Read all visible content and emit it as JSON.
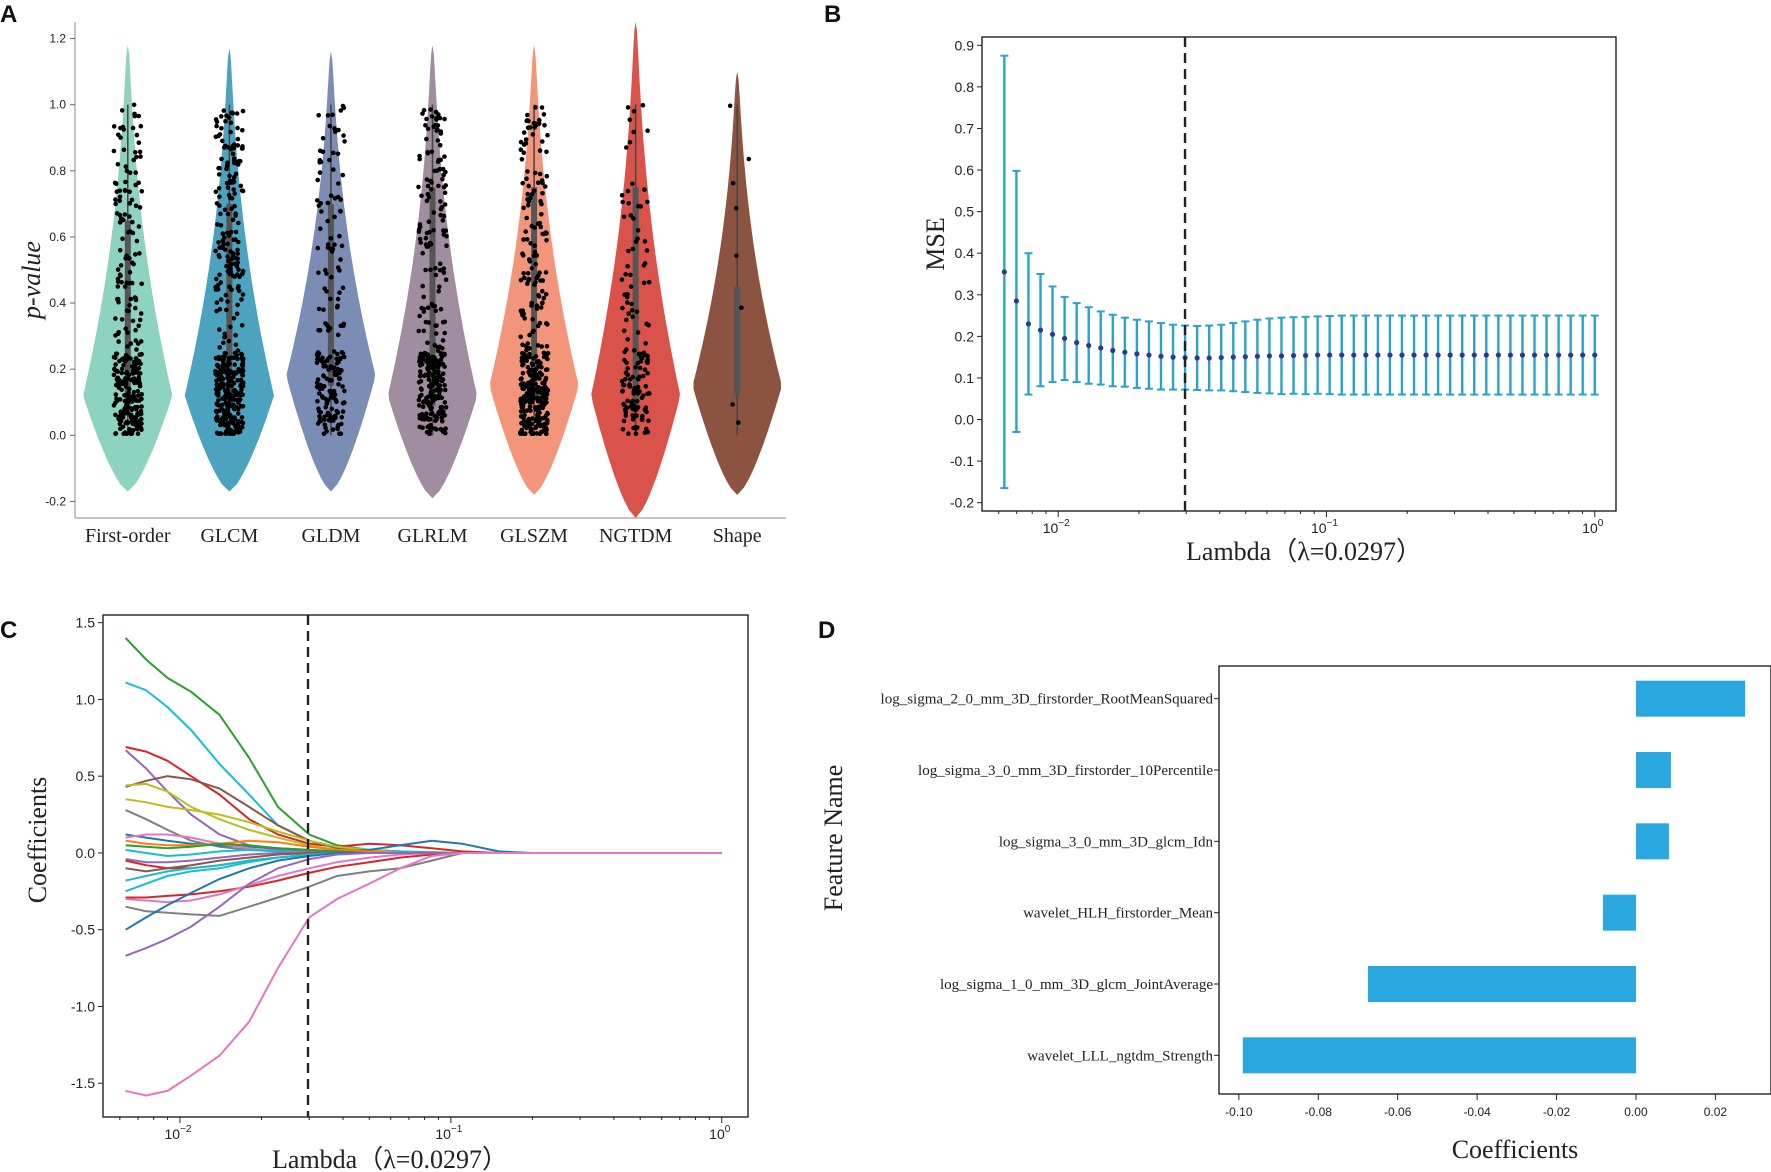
{
  "panels": {
    "a": "A",
    "b": "B",
    "c": "C",
    "d": "D"
  },
  "chart_data": [
    {
      "id": "A",
      "type": "violin",
      "ylabel": "p-value",
      "ylim": [
        -0.25,
        1.25
      ],
      "yticks": [
        "-0.2",
        "0.0",
        "0.2",
        "0.4",
        "0.6",
        "0.8",
        "1.0",
        "1.2"
      ],
      "yticks_values": [
        -0.2,
        0.0,
        0.2,
        0.4,
        0.6,
        0.8,
        1.0,
        1.2
      ],
      "categories": [
        "First-order",
        "GLCM",
        "GLDM",
        "GLRLM",
        "GLSZM",
        "NGTDM",
        "Shape"
      ],
      "colors": [
        "#8dd3c0",
        "#4ba3bf",
        "#7b8db5",
        "#a08da0",
        "#f3957a",
        "#d9534a",
        "#8c5440"
      ],
      "violin_range": [
        [
          -0.17,
          1.18
        ],
        [
          -0.17,
          1.17
        ],
        [
          -0.17,
          1.16
        ],
        [
          -0.19,
          1.18
        ],
        [
          -0.18,
          1.18
        ],
        [
          -0.25,
          1.25
        ],
        [
          -0.18,
          1.1
        ]
      ],
      "violin_mode": [
        0.12,
        0.12,
        0.18,
        0.12,
        0.15,
        0.12,
        0.15
      ],
      "n_points": [
        300,
        400,
        200,
        300,
        350,
        150,
        8
      ],
      "median": [
        0.35,
        0.4,
        0.4,
        0.45,
        0.45,
        0.45,
        0.15
      ]
    },
    {
      "id": "B",
      "type": "errorbar",
      "xlabel": "Lambda（λ=0.0297）",
      "ylabel": "MSE",
      "xscale": "log",
      "xlim": [
        0.0052,
        1.2
      ],
      "ylim": [
        -0.22,
        0.92
      ],
      "yticks": [
        "-0.2",
        "-0.1",
        "0.0",
        "0.1",
        "0.2",
        "0.3",
        "0.4",
        "0.5",
        "0.6",
        "0.7",
        "0.8",
        "0.9"
      ],
      "yticks_values": [
        -0.2,
        -0.1,
        0,
        0.1,
        0.2,
        0.3,
        0.4,
        0.5,
        0.6,
        0.7,
        0.8,
        0.9
      ],
      "xticks_values": [
        0.01,
        0.1,
        1
      ],
      "xticks_exp": [
        "−2",
        "−1",
        "0"
      ],
      "lambda_opt": 0.0297,
      "lambda_min": 0.0063,
      "lambda_max": 1.0,
      "n_lambdas": 50,
      "mean": [
        0.355,
        0.285,
        0.23,
        0.215,
        0.205,
        0.195,
        0.185,
        0.178,
        0.172,
        0.166,
        0.162,
        0.158,
        0.155,
        0.152,
        0.15,
        0.149,
        0.148,
        0.148,
        0.149,
        0.15,
        0.151,
        0.152,
        0.153,
        0.153,
        0.154,
        0.154,
        0.155,
        0.155,
        0.155,
        0.155,
        0.155,
        0.155,
        0.155,
        0.155,
        0.155,
        0.155,
        0.155,
        0.155,
        0.155,
        0.155,
        0.155,
        0.155,
        0.155,
        0.155,
        0.155,
        0.155,
        0.155,
        0.155,
        0.155,
        0.155
      ],
      "upper": [
        0.875,
        0.598,
        0.4,
        0.35,
        0.32,
        0.295,
        0.28,
        0.27,
        0.26,
        0.252,
        0.245,
        0.24,
        0.236,
        0.232,
        0.228,
        0.226,
        0.225,
        0.226,
        0.228,
        0.232,
        0.236,
        0.24,
        0.243,
        0.245,
        0.246,
        0.247,
        0.248,
        0.249,
        0.25,
        0.25,
        0.25,
        0.25,
        0.25,
        0.25,
        0.25,
        0.25,
        0.25,
        0.25,
        0.25,
        0.25,
        0.25,
        0.25,
        0.25,
        0.25,
        0.25,
        0.25,
        0.25,
        0.25,
        0.25,
        0.25
      ],
      "lower": [
        -0.165,
        -0.03,
        0.06,
        0.08,
        0.09,
        0.095,
        0.09,
        0.086,
        0.084,
        0.08,
        0.079,
        0.076,
        0.074,
        0.072,
        0.072,
        0.072,
        0.071,
        0.07,
        0.07,
        0.068,
        0.066,
        0.064,
        0.063,
        0.061,
        0.062,
        0.061,
        0.062,
        0.061,
        0.06,
        0.06,
        0.06,
        0.06,
        0.06,
        0.06,
        0.06,
        0.06,
        0.06,
        0.06,
        0.06,
        0.06,
        0.06,
        0.06,
        0.06,
        0.06,
        0.06,
        0.06,
        0.06,
        0.06,
        0.06,
        0.06
      ]
    },
    {
      "id": "C",
      "type": "line",
      "xlabel": "Lambda（λ=0.0297）",
      "ylabel": "Coefficients",
      "xscale": "log",
      "xlim": [
        0.0052,
        1.25
      ],
      "ylim": [
        -1.72,
        1.55
      ],
      "yticks": [
        "-1.5",
        "-1.0",
        "-0.5",
        "0.0",
        "0.5",
        "1.0",
        "1.5"
      ],
      "yticks_values": [
        -1.5,
        -1.0,
        -0.5,
        0.0,
        0.5,
        1.0,
        1.5
      ],
      "xticks_values": [
        0.01,
        0.1,
        1
      ],
      "xticks_exp": [
        "−2",
        "−1",
        "0"
      ],
      "lambda_opt": 0.0297,
      "lambdas": [
        0.0063,
        0.0075,
        0.009,
        0.011,
        0.014,
        0.018,
        0.023,
        0.03,
        0.038,
        0.05,
        0.065,
        0.085,
        0.11,
        0.15,
        0.2,
        0.3,
        0.5,
        1.0
      ],
      "series": [
        {
          "color": "#2ca02c",
          "values": [
            1.4,
            1.26,
            1.14,
            1.05,
            0.9,
            0.62,
            0.3,
            0.12,
            0.05,
            0.02,
            0.01,
            0.005,
            0,
            0,
            0,
            0,
            0,
            0
          ]
        },
        {
          "color": "#17becf",
          "values": [
            1.11,
            1.06,
            0.95,
            0.8,
            0.58,
            0.38,
            0.18,
            0.08,
            0.04,
            0.02,
            0.01,
            0,
            0,
            0,
            0,
            0,
            0,
            0
          ]
        },
        {
          "color": "#d62728",
          "values": [
            0.69,
            0.66,
            0.6,
            0.5,
            0.38,
            0.22,
            0.12,
            0.06,
            0.04,
            0.06,
            0.05,
            0.03,
            0.01,
            0,
            0,
            0,
            0,
            0
          ]
        },
        {
          "color": "#9467bd",
          "values": [
            0.67,
            0.55,
            0.4,
            0.25,
            0.12,
            0.05,
            0.02,
            0.01,
            0,
            0,
            0,
            0,
            0,
            0,
            0,
            0,
            0,
            0
          ]
        },
        {
          "color": "#8c564b",
          "values": [
            0.43,
            0.47,
            0.5,
            0.48,
            0.42,
            0.3,
            0.18,
            0.08,
            0.03,
            0.01,
            0,
            0,
            0,
            0,
            0,
            0,
            0,
            0
          ]
        },
        {
          "color": "#bcbd22",
          "values": [
            0.44,
            0.45,
            0.4,
            0.3,
            0.22,
            0.15,
            0.1,
            0.05,
            0.02,
            0.01,
            0,
            0,
            0,
            0,
            0,
            0,
            0,
            0
          ]
        },
        {
          "color": "#bcbd22",
          "values": [
            0.35,
            0.33,
            0.3,
            0.28,
            0.25,
            0.2,
            0.14,
            0.08,
            0.04,
            0.02,
            0,
            0,
            0,
            0,
            0,
            0,
            0,
            0
          ]
        },
        {
          "color": "#7f7f7f",
          "values": [
            0.28,
            0.22,
            0.15,
            0.08,
            0.04,
            0.02,
            0.01,
            0,
            0,
            0,
            0,
            0,
            0,
            0,
            0,
            0,
            0,
            0
          ]
        },
        {
          "color": "#1f77b4",
          "values": [
            0.12,
            0.1,
            0.08,
            0.06,
            0.05,
            0.04,
            0.03,
            0.02,
            0.01,
            0.02,
            0.05,
            0.08,
            0.06,
            0.01,
            0,
            0,
            0,
            0
          ]
        },
        {
          "color": "#e377c2",
          "values": [
            0.1,
            0.12,
            0.12,
            0.1,
            0.06,
            0.03,
            0.01,
            0,
            0,
            0,
            0,
            0,
            0,
            0,
            0,
            0,
            0,
            0
          ]
        },
        {
          "color": "#ff7f0e",
          "values": [
            0.08,
            0.06,
            0.05,
            0.05,
            0.06,
            0.08,
            0.07,
            0.04,
            0.02,
            0.01,
            0,
            0,
            0,
            0,
            0,
            0,
            0,
            0
          ]
        },
        {
          "color": "#2ca02c",
          "values": [
            0.05,
            0.04,
            0.03,
            0.04,
            0.06,
            0.05,
            0.03,
            0.02,
            0.01,
            0,
            0,
            0,
            0,
            0,
            0,
            0,
            0,
            0
          ]
        },
        {
          "color": "#17becf",
          "values": [
            0.02,
            0.0,
            -0.02,
            -0.01,
            0.01,
            0.02,
            0.01,
            0,
            0,
            0,
            0,
            0,
            0,
            0,
            0,
            0,
            0,
            0
          ]
        },
        {
          "color": "#9467bd",
          "values": [
            -0.04,
            -0.06,
            -0.06,
            -0.05,
            -0.03,
            -0.01,
            0,
            0,
            0,
            0,
            0,
            0,
            0,
            0,
            0,
            0,
            0,
            0
          ]
        },
        {
          "color": "#d62728",
          "values": [
            -0.05,
            -0.08,
            -0.1,
            -0.1,
            -0.08,
            -0.05,
            -0.03,
            -0.01,
            0,
            0,
            0,
            0,
            0,
            0,
            0,
            0,
            0,
            0
          ]
        },
        {
          "color": "#8c564b",
          "values": [
            -0.1,
            -0.12,
            -0.1,
            -0.08,
            -0.05,
            -0.03,
            -0.01,
            0,
            0,
            0,
            0,
            0,
            0,
            0,
            0,
            0,
            0,
            0
          ]
        },
        {
          "color": "#17becf",
          "values": [
            -0.18,
            -0.15,
            -0.12,
            -0.1,
            -0.08,
            -0.05,
            -0.03,
            -0.01,
            0,
            0,
            0,
            0,
            0,
            0,
            0,
            0,
            0,
            0
          ]
        },
        {
          "color": "#17becf",
          "values": [
            -0.25,
            -0.2,
            -0.15,
            -0.12,
            -0.1,
            -0.06,
            -0.03,
            -0.01,
            0,
            0,
            0,
            0,
            0,
            0,
            0,
            0,
            0,
            0
          ]
        },
        {
          "color": "#d62728",
          "values": [
            -0.29,
            -0.29,
            -0.28,
            -0.27,
            -0.25,
            -0.22,
            -0.18,
            -0.13,
            -0.09,
            -0.06,
            -0.03,
            -0.01,
            0,
            0,
            0,
            0,
            0,
            0
          ]
        },
        {
          "color": "#e377c2",
          "values": [
            -0.3,
            -0.31,
            -0.32,
            -0.31,
            -0.27,
            -0.21,
            -0.15,
            -0.1,
            -0.06,
            -0.03,
            -0.01,
            0,
            0,
            0,
            0,
            0,
            0,
            0
          ]
        },
        {
          "color": "#7f7f7f",
          "values": [
            -0.35,
            -0.38,
            -0.39,
            -0.4,
            -0.41,
            -0.35,
            -0.29,
            -0.22,
            -0.15,
            -0.12,
            -0.1,
            -0.05,
            0,
            0,
            0,
            0,
            0,
            0
          ]
        },
        {
          "color": "#1f77b4",
          "values": [
            -0.5,
            -0.42,
            -0.34,
            -0.26,
            -0.17,
            -0.1,
            -0.05,
            -0.02,
            0,
            0,
            0,
            0,
            0,
            0,
            0,
            0,
            0,
            0
          ]
        },
        {
          "color": "#9467bd",
          "values": [
            -0.67,
            -0.62,
            -0.56,
            -0.48,
            -0.35,
            -0.2,
            -0.1,
            -0.04,
            -0.01,
            0,
            0,
            0,
            0,
            0,
            0,
            0,
            0,
            0
          ]
        },
        {
          "color": "#e377c2",
          "values": [
            -1.55,
            -1.58,
            -1.55,
            -1.45,
            -1.32,
            -1.1,
            -0.75,
            -0.42,
            -0.3,
            -0.2,
            -0.1,
            -0.02,
            0,
            0,
            0,
            0,
            0,
            0
          ]
        }
      ]
    },
    {
      "id": "D",
      "type": "barh",
      "xlabel": "Coefficients",
      "ylabel": "Feature Name",
      "xlim": [
        -0.105,
        0.034
      ],
      "xticks": [
        "-0.10",
        "-0.08",
        "-0.06",
        "-0.04",
        "-0.02",
        "0.00",
        "0.02"
      ],
      "xticks_values": [
        -0.1,
        -0.08,
        -0.06,
        -0.04,
        -0.02,
        0.0,
        0.02
      ],
      "bar_color": "#29a8e0",
      "categories": [
        "log_sigma_2_0_mm_3D_firstorder_RootMeanSquared",
        "log_sigma_3_0_mm_3D_firstorder_10Percentile",
        "log_sigma_3_0_mm_3D_glcm_Idn",
        "wavelet_HLH_firstorder_Mean",
        "log_sigma_1_0_mm_3D_glcm_JointAverage",
        "wavelet_LLL_ngtdm_Strength"
      ],
      "values": [
        0.0275,
        0.0088,
        0.0083,
        -0.0083,
        -0.0675,
        -0.099
      ]
    }
  ]
}
